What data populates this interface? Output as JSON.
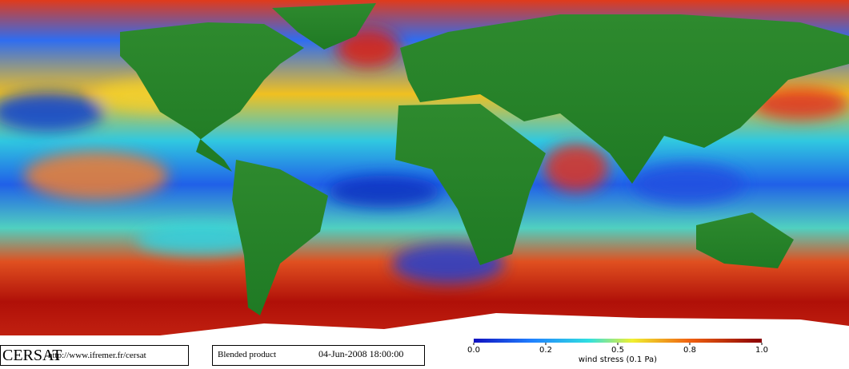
{
  "logo": "CERSAT",
  "url": "http://www.ifremer.fr/cersat",
  "product": "Blended product",
  "timestamp": "04-Jun-2008 18:00:00",
  "colorbar": {
    "ticks": [
      {
        "value": 0,
        "label": "0.0"
      },
      0.2,
      0.5,
      0.8,
      {
        "value": 1,
        "label": "1.0"
      }
    ],
    "label": "wind stress (0.1 Pa)"
  }
}
